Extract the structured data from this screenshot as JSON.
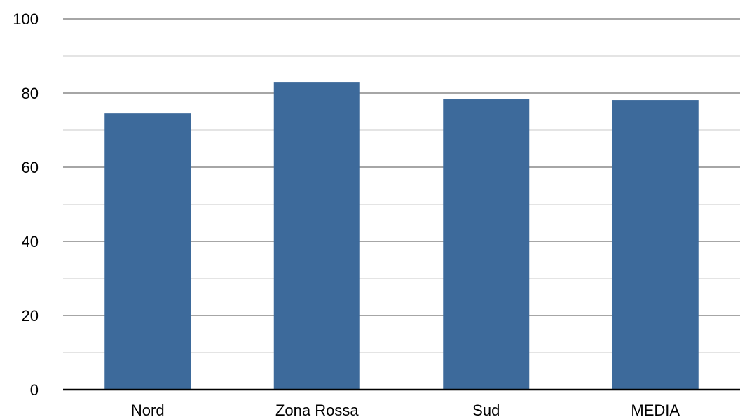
{
  "chart_data": {
    "type": "bar",
    "categories": [
      "Nord",
      "Zona Rossa",
      "Sud",
      "MEDIA"
    ],
    "values": [
      74.5,
      83.0,
      78.3,
      78.1
    ],
    "title": "",
    "xlabel": "",
    "ylabel": "",
    "ylim": [
      0,
      100
    ],
    "y_ticks": [
      0,
      20,
      40,
      60,
      80,
      100
    ],
    "y_tick_labels": [
      "0",
      "20",
      "40",
      "60",
      "80",
      "100"
    ],
    "minor_gridlines": [
      10,
      30,
      50,
      70,
      90
    ],
    "grid": true,
    "legend": "none",
    "colors": {
      "bar": "#3d6a9b",
      "major_grid": "#a6a6a6",
      "minor_grid": "#c8c8c8",
      "axis": "#000000"
    }
  }
}
